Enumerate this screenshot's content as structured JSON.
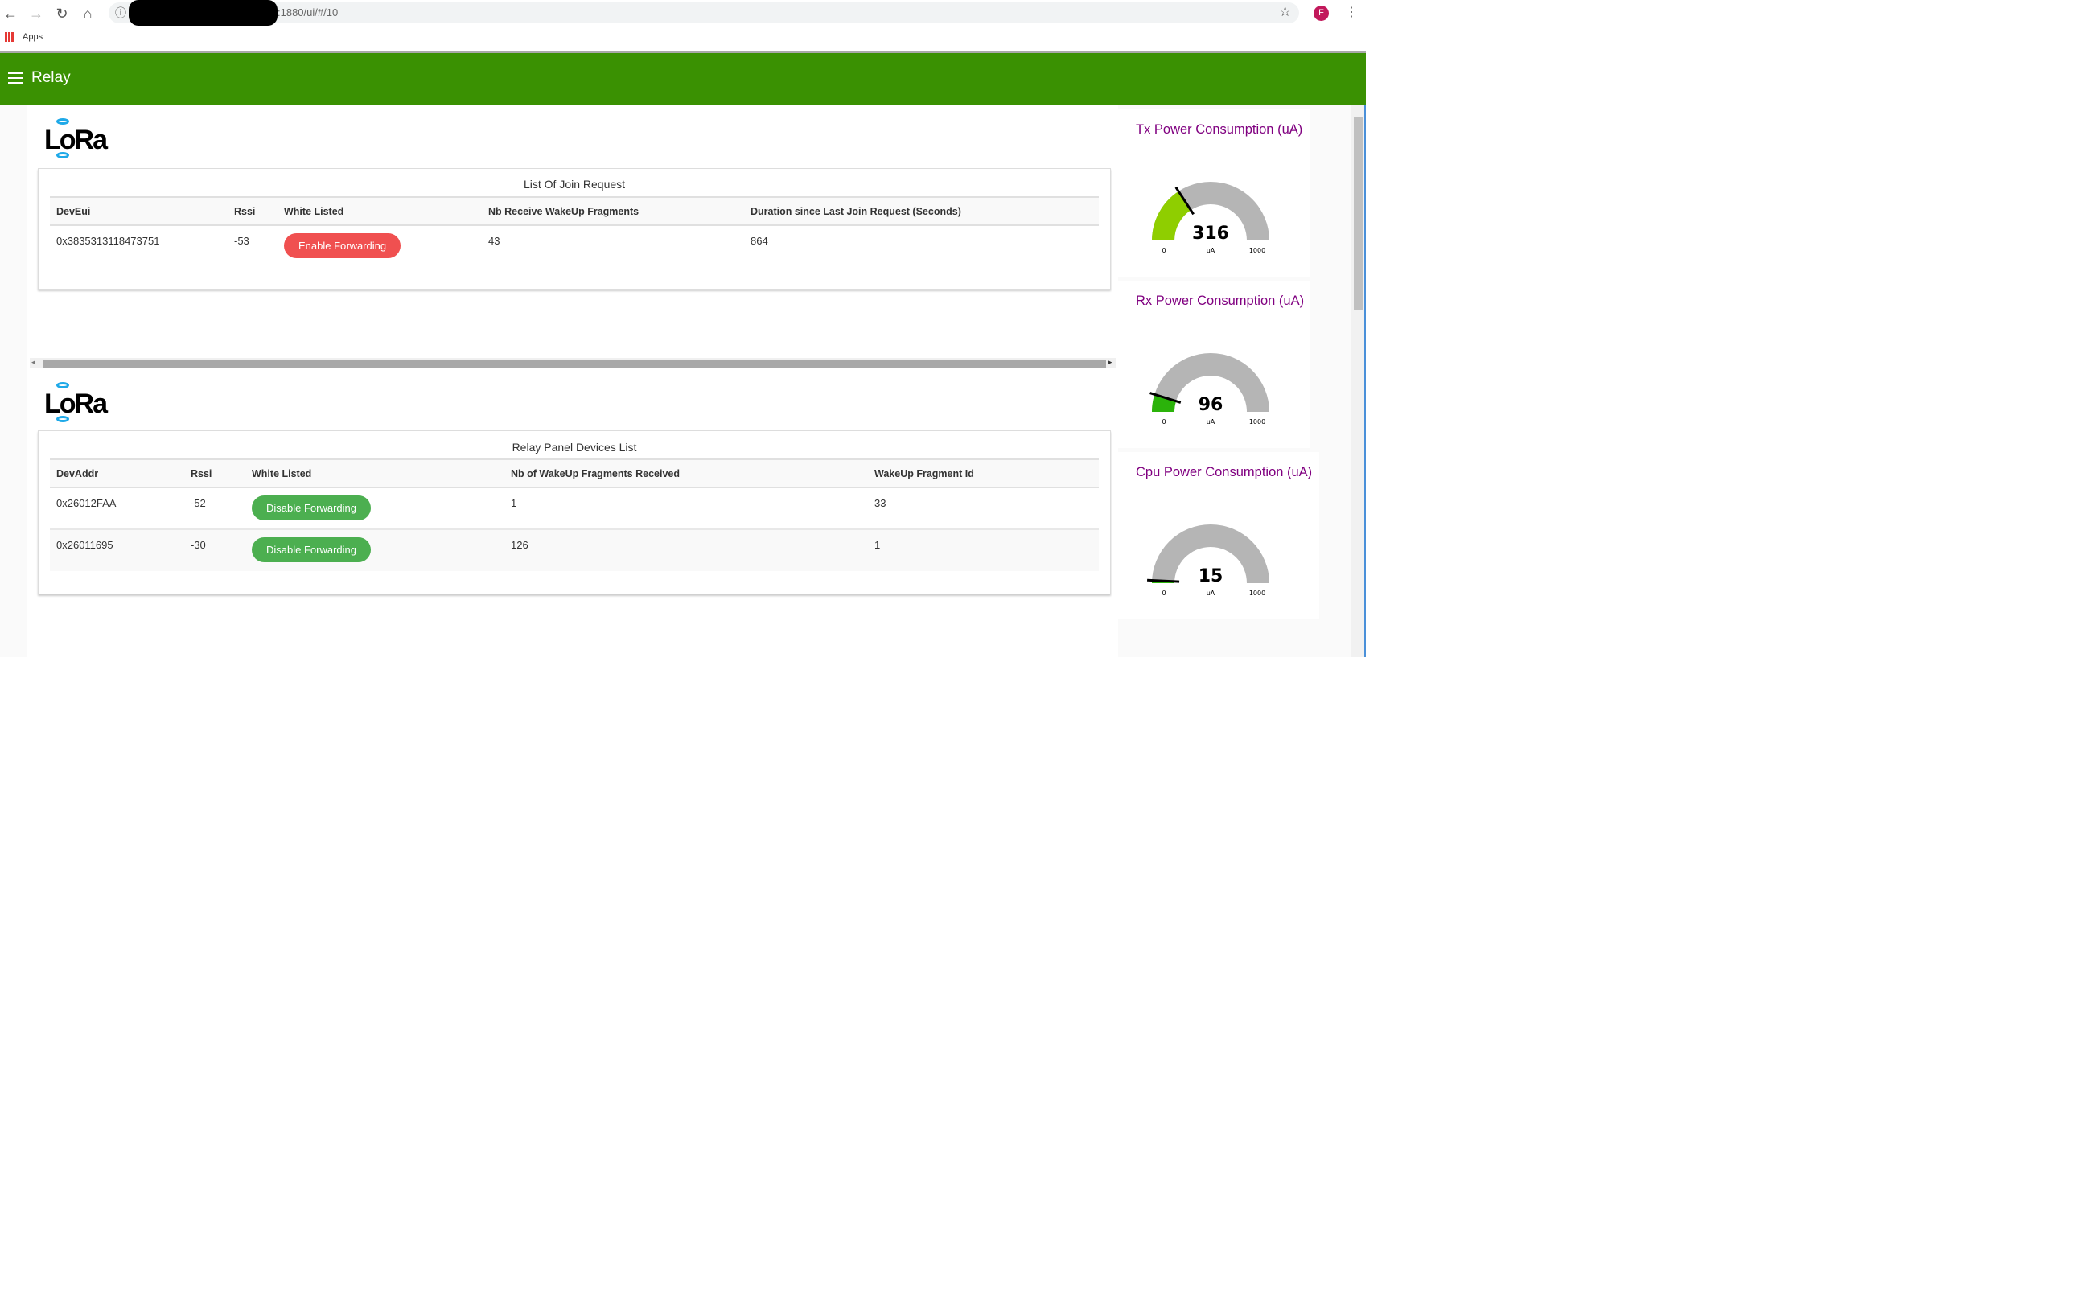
{
  "browser": {
    "url": ":1880/ui/#/10",
    "bookmarks": [
      "Apps"
    ],
    "profile_initial": "F"
  },
  "header": {
    "title": "Relay",
    "color": "#3a9102"
  },
  "logo": "LoRa",
  "join_requests": {
    "title": "List Of Join Request",
    "columns": [
      "DevEui",
      "Rssi",
      "White Listed",
      "Nb Receive WakeUp Fragments",
      "Duration since Last Join Request (Seconds)"
    ],
    "rows": [
      {
        "deveui": "0x3835313118473751",
        "rssi": "-53",
        "button": "Enable Forwarding",
        "fragments": "43",
        "duration": "864"
      }
    ]
  },
  "relay_devices": {
    "title": "Relay Panel Devices List",
    "columns": [
      "DevAddr",
      "Rssi",
      "White Listed",
      "Nb of WakeUp Fragments Received",
      "WakeUp Fragment Id"
    ],
    "rows": [
      {
        "devaddr": "0x26012FAA",
        "rssi": "-52",
        "button": "Disable Forwarding",
        "fragments": "1",
        "fragment_id": "33"
      },
      {
        "devaddr": "0x26011695",
        "rssi": "-30",
        "button": "Disable Forwarding",
        "fragments": "126",
        "fragment_id": "1"
      }
    ]
  },
  "gauges": [
    {
      "title": "Tx Power Consumption (uA)",
      "value": 316,
      "value_label": "316",
      "min": "0",
      "max": "1000",
      "unit": "uA",
      "color": "#8fce00"
    },
    {
      "title": "Rx Power Consumption (uA)",
      "value": 96,
      "value_label": "96",
      "min": "0",
      "max": "1000",
      "unit": "uA",
      "color": "#2bb30a"
    },
    {
      "title": "Cpu Power Consumption (uA)",
      "value": 15,
      "value_label": "15",
      "min": "0",
      "max": "1000",
      "unit": "uA",
      "color": "#2bb30a"
    }
  ]
}
